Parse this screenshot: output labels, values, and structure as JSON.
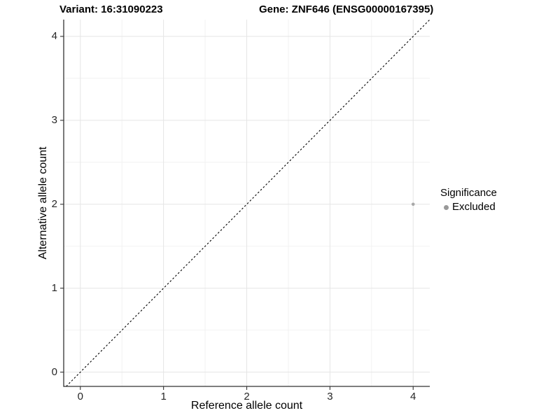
{
  "figure": {
    "title_variant": "Variant: 16:31090223",
    "title_gene": "Gene: ZNF646 (ENSG00000167395)"
  },
  "axes": {
    "x_label": "Reference allele count",
    "y_label": "Alternative allele count",
    "x_tick_labels": [
      "0",
      "1",
      "2",
      "3",
      "4"
    ],
    "y_tick_labels": [
      "0",
      "1",
      "2",
      "3",
      "4"
    ]
  },
  "legend": {
    "title": "Significance",
    "items": [
      {
        "label": "Excluded",
        "key_color": "#999999"
      }
    ]
  },
  "colors": {
    "background": "#ffffff",
    "axis_line": "#333333",
    "tick_mark": "#333333",
    "grid_major": "#e5e5e5",
    "grid_minor": "#f2f2f2",
    "point": "#a8a8a8",
    "reference_line": "#000000",
    "text": "#000000"
  },
  "chart_data": {
    "type": "scatter",
    "title": "Variant: 16:31090223    Gene: ZNF646 (ENSG00000167395)",
    "xlabel": "Reference allele count",
    "ylabel": "Alternative allele count",
    "xlim": [
      -0.2,
      4.2
    ],
    "ylim": [
      -0.17,
      4.2
    ],
    "x_ticks": [
      0,
      1,
      2,
      3,
      4
    ],
    "y_ticks": [
      0,
      1,
      2,
      3,
      4
    ],
    "x_minor_ticks": [
      0.5,
      1.5,
      2.5,
      3.5
    ],
    "y_minor_ticks": [
      0.5,
      1.5,
      2.5,
      3.5
    ],
    "grid": "major+minor",
    "legend_position": "right",
    "series": [
      {
        "name": "Excluded",
        "color": "#a8a8a8",
        "point_radius": 2.3,
        "points": [
          {
            "x": 4,
            "y": 2
          }
        ]
      }
    ],
    "reference_line": {
      "type": "identity",
      "style": "dashed",
      "color": "#000000"
    }
  }
}
